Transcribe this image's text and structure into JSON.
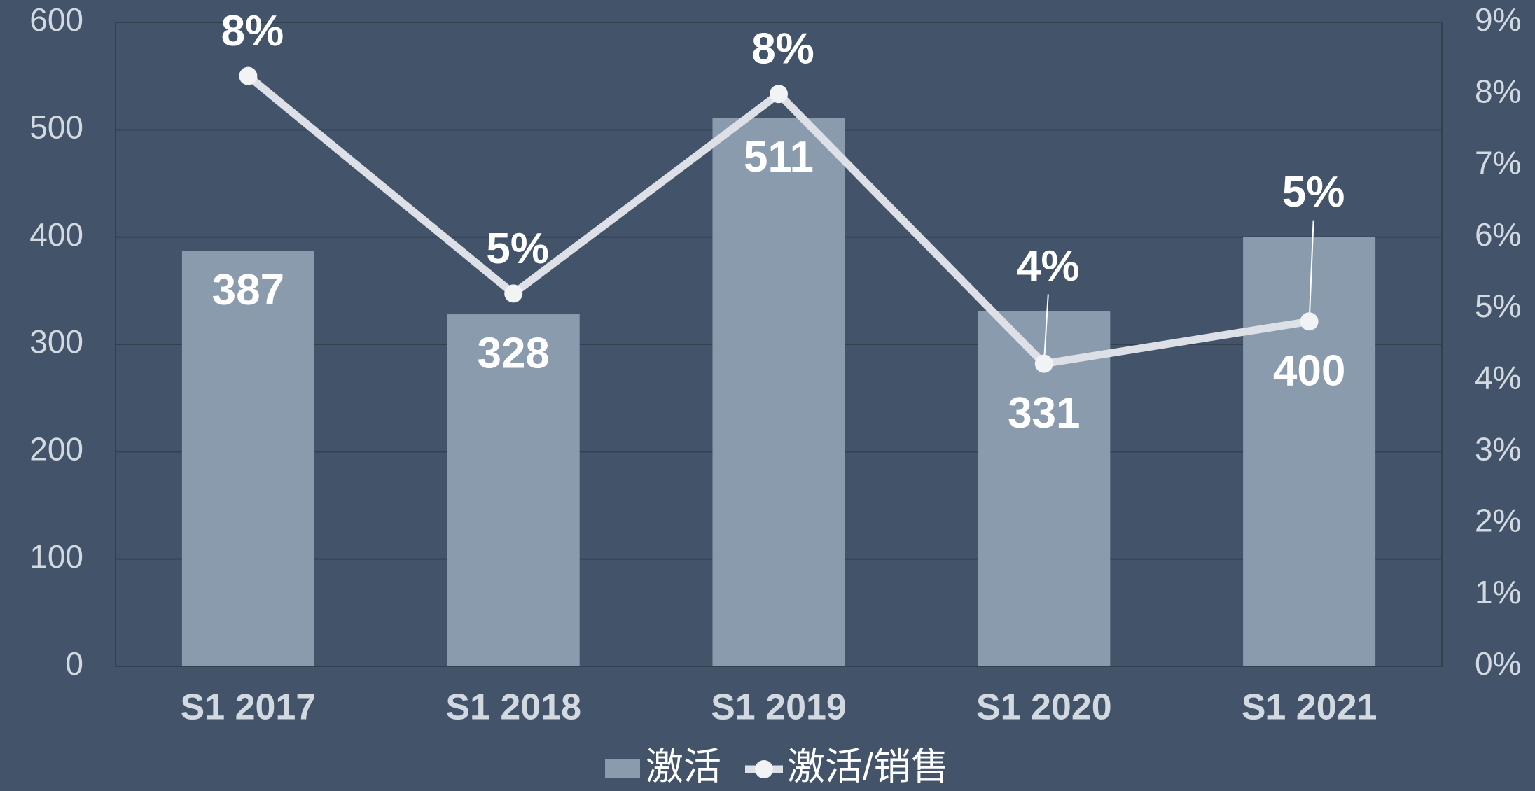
{
  "chart_data": {
    "type": "bar",
    "categories": [
      "S1 2017",
      "S1 2018",
      "S1 2019",
      "S1 2020",
      "S1 2021"
    ],
    "series": [
      {
        "name": "激活",
        "type": "bar",
        "color": "#8a9bad",
        "values": [
          387,
          328,
          511,
          331,
          400
        ]
      },
      {
        "name": "激活/销售",
        "type": "line",
        "axis": "y2",
        "color": "#dde0e6",
        "values": [
          8.25,
          5.21,
          8.0,
          4.23,
          4.82
        ],
        "value_labels": [
          "8%",
          "5%",
          "8%",
          "4%",
          "5%"
        ]
      }
    ],
    "ylim": [
      0,
      600
    ],
    "yticks": [
      0,
      100,
      200,
      300,
      400,
      500,
      600
    ],
    "y2lim": [
      0,
      9
    ],
    "y2ticks": [
      {
        "value": 0,
        "label": "0%"
      },
      {
        "value": 1,
        "label": "1%"
      },
      {
        "value": 2,
        "label": "2%"
      },
      {
        "value": 3,
        "label": "3%"
      },
      {
        "value": 4,
        "label": "4%"
      },
      {
        "value": 5,
        "label": "5%"
      },
      {
        "value": 6,
        "label": "6%"
      },
      {
        "value": 7,
        "label": "7%"
      },
      {
        "value": 8,
        "label": "8%"
      },
      {
        "value": 9,
        "label": "9%"
      }
    ],
    "grid": true
  }
}
